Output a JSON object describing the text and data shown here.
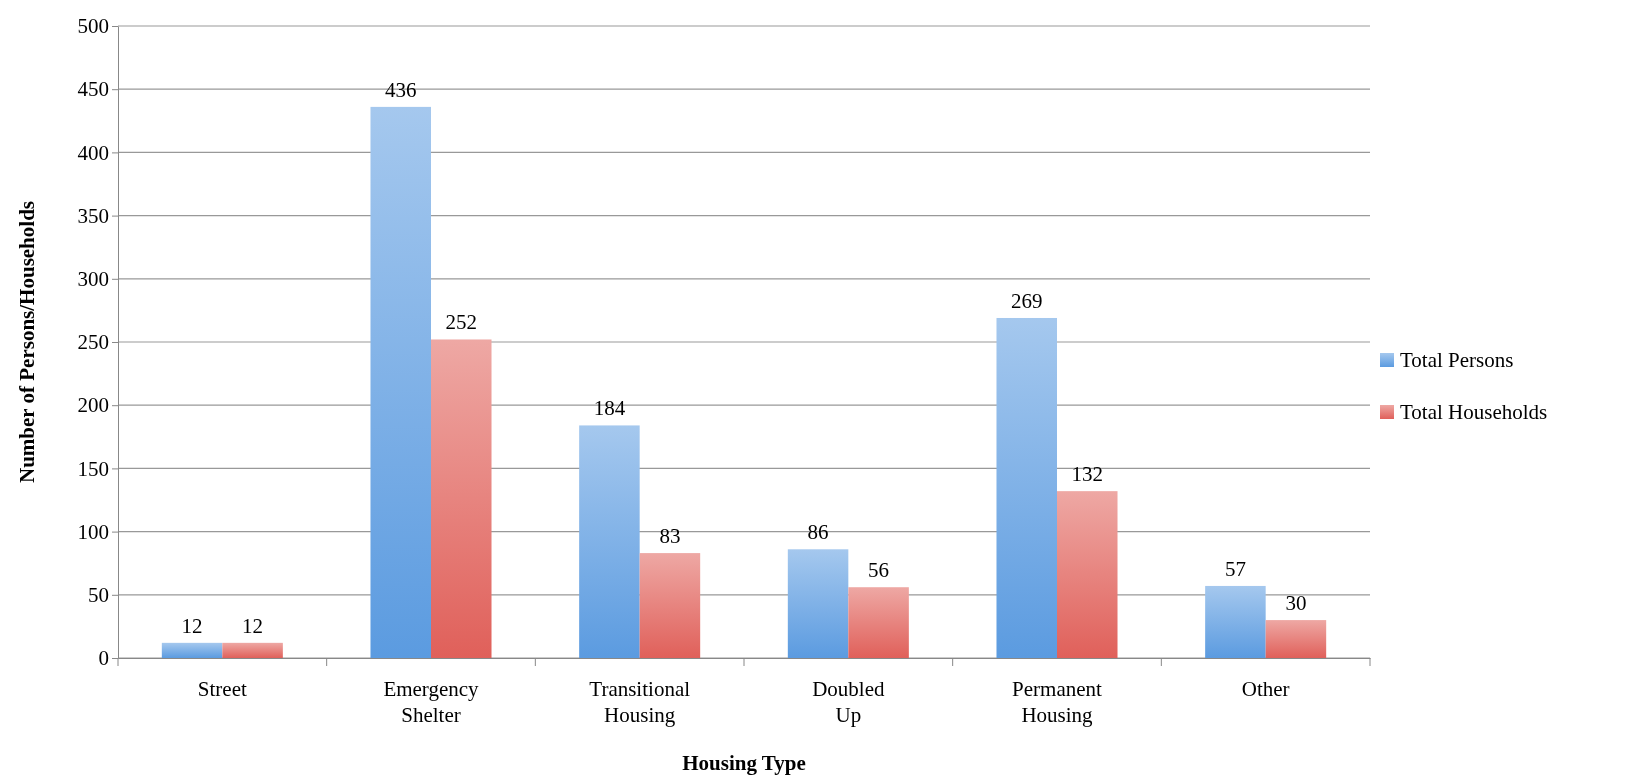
{
  "chart_data": {
    "type": "bar",
    "xlabel": "Housing Type",
    "ylabel": "Number of Persons/Households",
    "categories": [
      "Street",
      "Emergency Shelter",
      "Transitional Housing",
      "Doubled Up",
      "Permanent Housing",
      "Other"
    ],
    "series": [
      {
        "name": "Total Persons",
        "color": "#5b9be0",
        "values": [
          12,
          436,
          184,
          86,
          269,
          57
        ]
      },
      {
        "name": "Total Households",
        "color": "#e0605a",
        "values": [
          12,
          252,
          83,
          56,
          132,
          30
        ]
      }
    ],
    "ylim": [
      0,
      500
    ],
    "yticks": [
      0,
      50,
      100,
      150,
      200,
      250,
      300,
      350,
      400,
      450,
      500
    ],
    "grid": "y",
    "legend": "right",
    "data_labels": true
  }
}
